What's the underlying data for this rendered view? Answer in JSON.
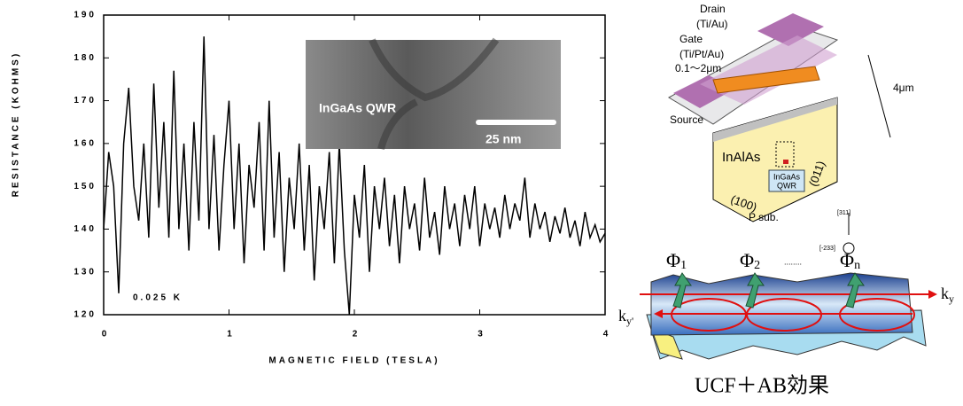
{
  "chart_data": {
    "type": "line",
    "x_label": "MAGNETIC FIELD (TESLA)",
    "y_label": "RESISTANCE (KOHMS)",
    "annotation": "0.025 K",
    "color": "#000000",
    "inset": {
      "label": "InGaAs QWR",
      "scale": "25 nm"
    },
    "x": [
      0,
      0.04,
      0.08,
      0.12,
      0.16,
      0.2,
      0.24,
      0.28,
      0.32,
      0.36,
      0.4,
      0.44,
      0.48,
      0.52,
      0.56,
      0.6,
      0.64,
      0.68,
      0.72,
      0.76,
      0.8,
      0.84,
      0.88,
      0.92,
      0.96,
      1.0,
      1.04,
      1.08,
      1.12,
      1.16,
      1.2,
      1.24,
      1.28,
      1.32,
      1.36,
      1.4,
      1.44,
      1.48,
      1.52,
      1.56,
      1.6,
      1.64,
      1.68,
      1.72,
      1.76,
      1.8,
      1.84,
      1.88,
      1.92,
      1.96,
      2.0,
      2.04,
      2.08,
      2.12,
      2.16,
      2.2,
      2.24,
      2.28,
      2.32,
      2.36,
      2.4,
      2.44,
      2.48,
      2.52,
      2.56,
      2.6,
      2.64,
      2.68,
      2.72,
      2.76,
      2.8,
      2.84,
      2.88,
      2.92,
      2.96,
      3.0,
      3.04,
      3.08,
      3.12,
      3.16,
      3.2,
      3.24,
      3.28,
      3.32,
      3.36,
      3.4,
      3.44,
      3.48,
      3.52,
      3.56,
      3.6,
      3.64,
      3.68,
      3.72,
      3.76,
      3.8,
      3.84,
      3.88,
      3.92,
      3.96,
      4.0
    ],
    "values": [
      140,
      158,
      150,
      125,
      160,
      173,
      150,
      142,
      160,
      138,
      174,
      145,
      165,
      138,
      177,
      140,
      160,
      135,
      165,
      142,
      185,
      140,
      162,
      135,
      155,
      170,
      140,
      160,
      132,
      155,
      145,
      165,
      135,
      170,
      138,
      158,
      130,
      152,
      140,
      160,
      135,
      155,
      128,
      150,
      140,
      158,
      132,
      160,
      135,
      120,
      148,
      138,
      155,
      130,
      150,
      140,
      152,
      136,
      148,
      132,
      150,
      140,
      146,
      135,
      152,
      138,
      144,
      134,
      150,
      140,
      146,
      136,
      148,
      140,
      150,
      136,
      146,
      140,
      145,
      138,
      148,
      140,
      146,
      142,
      152,
      138,
      146,
      140,
      144,
      137,
      143,
      139,
      145,
      138,
      142,
      136,
      144,
      138,
      141,
      137,
      139
    ],
    "xlim": [
      0,
      4
    ],
    "ylim": [
      120,
      190
    ],
    "xticks": [
      0,
      1,
      2,
      3,
      4
    ],
    "yticks": [
      120,
      130,
      140,
      150,
      160,
      170,
      180,
      190
    ]
  },
  "diagram": {
    "drain": "Drain",
    "drain_metal": "(Ti/Au)",
    "gate": "Gate",
    "gate_metal": "(Ti/Pt/Au)",
    "gate_len": "0.1～2μm",
    "width": "4μm",
    "source": "Source",
    "barrier": "InAlAs",
    "wire": "InGaAs",
    "wire2": "QWR",
    "face1": "(100)",
    "face2": "(011)",
    "sub": "P sub.",
    "dir": "[311]",
    "dir2": "[-233]",
    "phi": [
      {
        "s": "Φ",
        "sub": "1"
      },
      {
        "s": "Φ",
        "sub": "2"
      },
      {
        "s": "Φ",
        "sub": "n"
      }
    ],
    "dots": "........",
    "ky": {
      "s": "k",
      "sub": "y"
    },
    "ky2": {
      "s": "k",
      "sub": "y'"
    },
    "caption": "UCF＋AB効果"
  }
}
